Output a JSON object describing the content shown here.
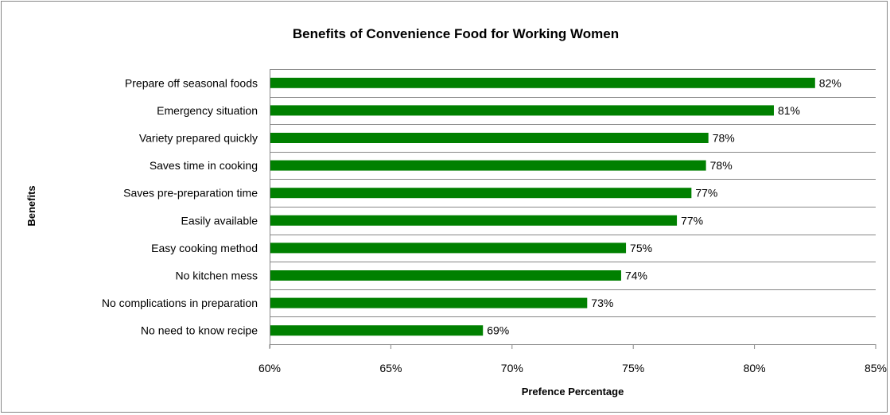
{
  "chart_data": {
    "type": "bar",
    "orientation": "horizontal",
    "title": "Benefits of Convenience Food for Working Women",
    "xlabel": "Prefence Percentage",
    "ylabel": "Benefits",
    "categories": [
      "Prepare off seasonal foods",
      "Emergency situation",
      "Variety prepared quickly",
      "Saves time in cooking",
      "Saves pre-preparation time",
      "Easily available",
      "Easy cooking method",
      "No kitchen mess",
      "No complications in preparation",
      "No need to know recipe"
    ],
    "values": [
      82.5,
      80.8,
      78.1,
      78.0,
      77.4,
      76.8,
      74.7,
      74.5,
      73.1,
      68.8
    ],
    "data_labels": [
      "82%",
      "81%",
      "78%",
      "78%",
      "77%",
      "77%",
      "75%",
      "74%",
      "73%",
      "69%"
    ],
    "xlim": [
      60,
      85
    ],
    "xticks": [
      60,
      65,
      70,
      75,
      80,
      85
    ],
    "xtick_labels": [
      "60%",
      "65%",
      "70%",
      "75%",
      "80%",
      "85%"
    ],
    "bar_color": "#008000",
    "grid": "horizontal",
    "legend": "none"
  }
}
